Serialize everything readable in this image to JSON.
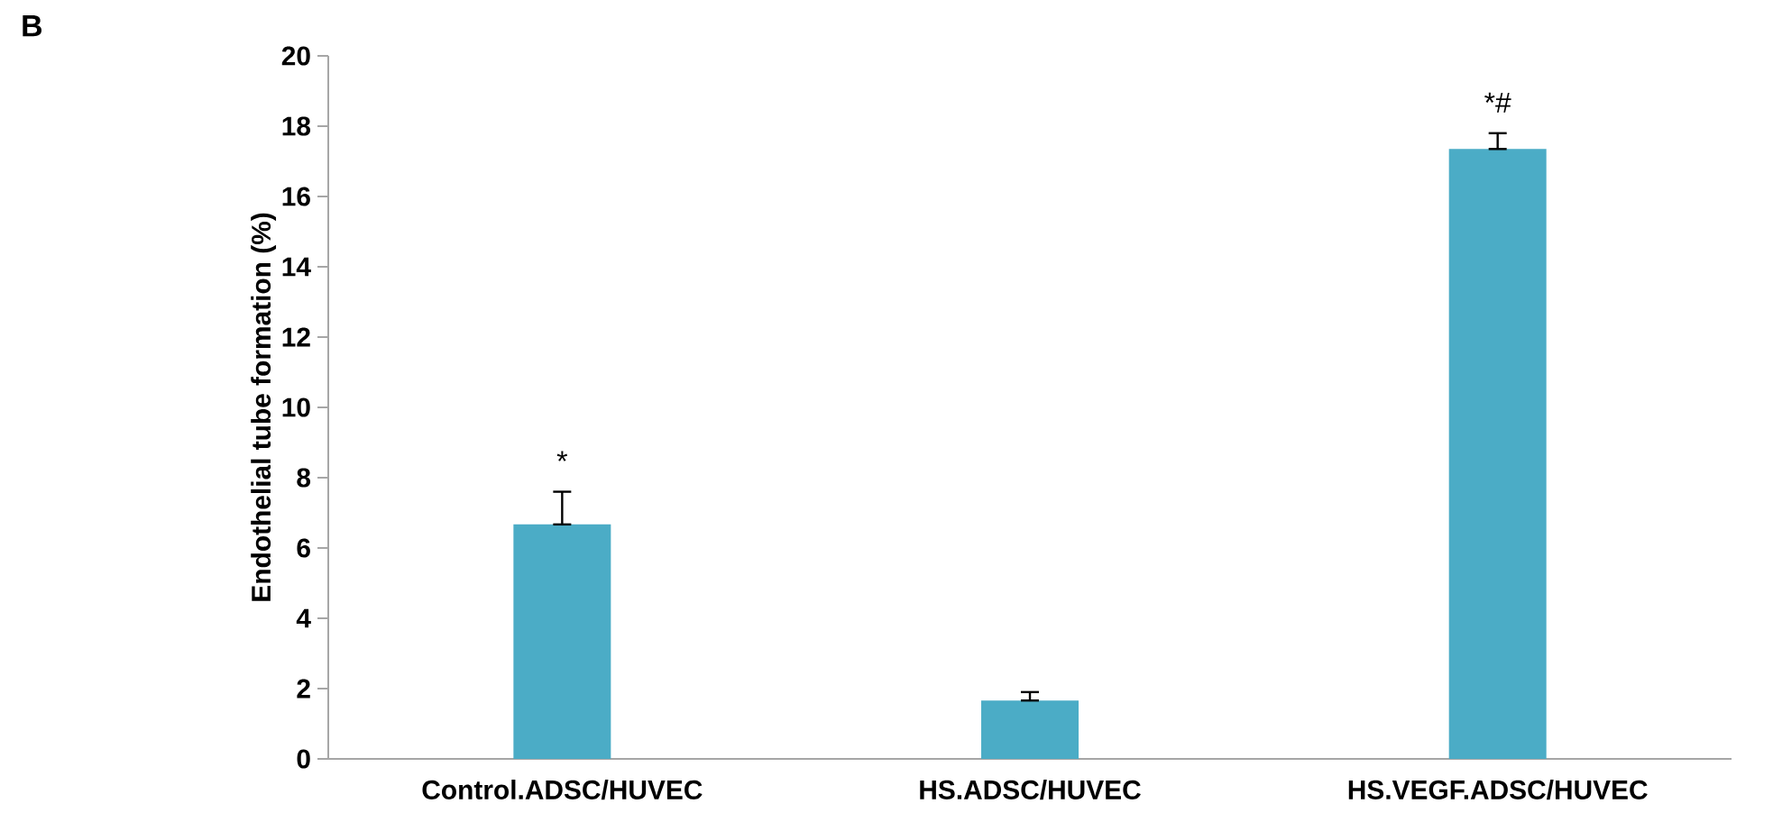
{
  "chart_data": {
    "type": "bar",
    "ylabel": "Endothelial tube formation  (%)",
    "categories": [
      "Control.ADSC/HUVEC",
      "HS.ADSC/HUVEC",
      "HS.VEGF.ADSC/HUVEC"
    ],
    "values": [
      6.67,
      1.66,
      17.35
    ],
    "errors": [
      [
        6.67,
        7.6
      ],
      [
        1.66,
        1.9
      ],
      [
        17.35,
        17.8
      ]
    ],
    "color": "#4bacc6",
    "ylim": [
      0,
      20
    ],
    "yticks": [
      0,
      2,
      4,
      6,
      8,
      10,
      12,
      14,
      16,
      18,
      20
    ],
    "grid": false,
    "annotations": [
      "B",
      {
        "text": "*",
        "x": "Control.ADSC/HUVEC",
        "y": 7.6
      },
      {
        "text": "*#",
        "x": "HS.VEGF.ADSC/HUVEC",
        "y": 17.8
      }
    ]
  }
}
